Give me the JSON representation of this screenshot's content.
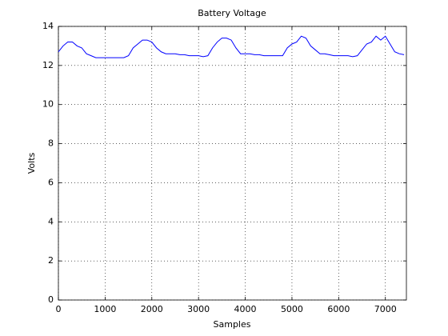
{
  "chart_data": {
    "type": "line",
    "title": "Battery Voltage",
    "xlabel": "Samples",
    "ylabel": "Volts",
    "x": [
      0,
      100,
      200,
      300,
      400,
      500,
      600,
      700,
      800,
      900,
      1000,
      1100,
      1200,
      1300,
      1400,
      1500,
      1600,
      1700,
      1800,
      1900,
      2000,
      2100,
      2200,
      2300,
      2400,
      2500,
      2600,
      2700,
      2800,
      2900,
      3000,
      3100,
      3200,
      3300,
      3400,
      3500,
      3600,
      3700,
      3800,
      3900,
      4000,
      4100,
      4200,
      4300,
      4400,
      4500,
      4600,
      4700,
      4800,
      4900,
      5000,
      5100,
      5200,
      5300,
      5400,
      5500,
      5600,
      5700,
      5800,
      5900,
      6000,
      6100,
      6200,
      6300,
      6400,
      6500,
      6600,
      6700,
      6800,
      6900,
      7000,
      7100,
      7200,
      7300,
      7400
    ],
    "series": [
      {
        "name": "Battery Voltage",
        "color": "#0000ff",
        "values": [
          12.7,
          13.0,
          13.2,
          13.2,
          13.0,
          12.9,
          12.6,
          12.5,
          12.4,
          12.4,
          12.4,
          12.4,
          12.4,
          12.4,
          12.4,
          12.5,
          12.9,
          13.1,
          13.3,
          13.3,
          13.2,
          12.9,
          12.7,
          12.6,
          12.6,
          12.6,
          12.55,
          12.55,
          12.5,
          12.5,
          12.5,
          12.45,
          12.5,
          12.9,
          13.2,
          13.4,
          13.4,
          13.3,
          12.9,
          12.6,
          12.6,
          12.6,
          12.55,
          12.55,
          12.5,
          12.5,
          12.5,
          12.5,
          12.5,
          12.9,
          13.1,
          13.2,
          13.5,
          13.4,
          13.0,
          12.8,
          12.6,
          12.6,
          12.55,
          12.5,
          12.5,
          12.5,
          12.5,
          12.45,
          12.5,
          12.8,
          13.1,
          13.2,
          13.5,
          13.3,
          13.5,
          13.1,
          12.7,
          12.6,
          12.55
        ]
      }
    ],
    "xlim": [
      0,
      7450
    ],
    "ylim": [
      0,
      14
    ],
    "xticks": [
      0,
      1000,
      2000,
      3000,
      4000,
      5000,
      6000,
      7000
    ],
    "yticks": [
      0,
      2,
      4,
      6,
      8,
      10,
      12,
      14
    ],
    "grid": true
  }
}
